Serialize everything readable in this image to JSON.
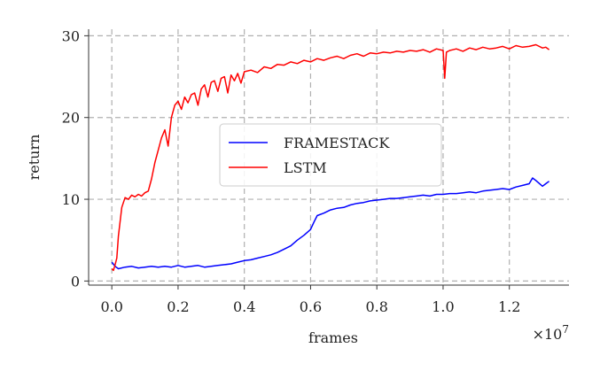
{
  "chart_data": {
    "type": "line",
    "title": "",
    "xlabel": "frames",
    "ylabel": "return",
    "x_offset_label": "×10",
    "x_offset_exponent": "7",
    "xlim": [
      -0.07,
      1.38
    ],
    "ylim": [
      -0.5,
      30.8
    ],
    "xticks": [
      0.0,
      0.2,
      0.4,
      0.6,
      0.8,
      1.0,
      1.2
    ],
    "xtick_labels": [
      "0.0",
      "0.2",
      "0.4",
      "0.6",
      "0.8",
      "1.0",
      "1.2"
    ],
    "yticks": [
      0,
      10,
      20,
      30
    ],
    "ytick_labels": [
      "0",
      "10",
      "20",
      "30"
    ],
    "grid": true,
    "legend_position": "center",
    "series": [
      {
        "name": "FRAMESTACK",
        "color": "#0000ff",
        "x": [
          0.0,
          0.01,
          0.02,
          0.04,
          0.06,
          0.08,
          0.1,
          0.12,
          0.14,
          0.16,
          0.18,
          0.2,
          0.22,
          0.24,
          0.26,
          0.28,
          0.3,
          0.32,
          0.34,
          0.36,
          0.38,
          0.4,
          0.42,
          0.44,
          0.46,
          0.48,
          0.5,
          0.52,
          0.54,
          0.56,
          0.58,
          0.6,
          0.61,
          0.62,
          0.64,
          0.66,
          0.68,
          0.7,
          0.72,
          0.74,
          0.76,
          0.78,
          0.8,
          0.82,
          0.84,
          0.86,
          0.88,
          0.9,
          0.92,
          0.94,
          0.96,
          0.98,
          1.0,
          1.02,
          1.04,
          1.06,
          1.08,
          1.1,
          1.12,
          1.14,
          1.16,
          1.18,
          1.2,
          1.22,
          1.24,
          1.26,
          1.27,
          1.28,
          1.3,
          1.31,
          1.32
        ],
        "y": [
          2.3,
          1.8,
          1.5,
          1.7,
          1.8,
          1.6,
          1.7,
          1.8,
          1.7,
          1.8,
          1.7,
          1.9,
          1.7,
          1.8,
          1.9,
          1.7,
          1.8,
          1.9,
          2.0,
          2.1,
          2.3,
          2.5,
          2.6,
          2.8,
          3.0,
          3.2,
          3.5,
          3.9,
          4.3,
          5.0,
          5.6,
          6.3,
          7.2,
          8.0,
          8.3,
          8.7,
          8.9,
          9.0,
          9.3,
          9.5,
          9.6,
          9.8,
          9.9,
          10.0,
          10.1,
          10.1,
          10.2,
          10.3,
          10.4,
          10.5,
          10.4,
          10.6,
          10.6,
          10.7,
          10.7,
          10.8,
          10.9,
          10.8,
          11.0,
          11.1,
          11.2,
          11.3,
          11.2,
          11.5,
          11.7,
          11.9,
          12.6,
          12.3,
          11.6,
          11.9,
          12.2
        ]
      },
      {
        "name": "LSTM",
        "color": "#ff0000",
        "x": [
          0.0,
          0.005,
          0.01,
          0.015,
          0.02,
          0.03,
          0.04,
          0.05,
          0.06,
          0.07,
          0.08,
          0.09,
          0.1,
          0.11,
          0.12,
          0.13,
          0.14,
          0.15,
          0.16,
          0.17,
          0.18,
          0.19,
          0.2,
          0.21,
          0.22,
          0.23,
          0.24,
          0.25,
          0.26,
          0.27,
          0.28,
          0.29,
          0.3,
          0.31,
          0.32,
          0.33,
          0.34,
          0.35,
          0.36,
          0.37,
          0.38,
          0.39,
          0.4,
          0.42,
          0.44,
          0.46,
          0.48,
          0.5,
          0.52,
          0.54,
          0.56,
          0.58,
          0.6,
          0.62,
          0.64,
          0.66,
          0.68,
          0.7,
          0.72,
          0.74,
          0.76,
          0.78,
          0.8,
          0.82,
          0.84,
          0.86,
          0.88,
          0.9,
          0.92,
          0.94,
          0.96,
          0.98,
          1.0,
          1.005,
          1.01,
          1.02,
          1.04,
          1.06,
          1.08,
          1.1,
          1.12,
          1.14,
          1.16,
          1.18,
          1.2,
          1.22,
          1.24,
          1.26,
          1.28,
          1.3,
          1.31,
          1.32
        ],
        "y": [
          1.5,
          1.3,
          2.0,
          2.8,
          5.5,
          9.0,
          10.2,
          10.0,
          10.5,
          10.3,
          10.6,
          10.4,
          10.8,
          11.0,
          12.5,
          14.5,
          16.0,
          17.5,
          18.5,
          16.5,
          20.0,
          21.5,
          22.0,
          21.0,
          22.5,
          21.8,
          22.8,
          23.0,
          21.5,
          23.5,
          24.0,
          22.5,
          24.3,
          24.5,
          23.2,
          24.8,
          25.0,
          23.0,
          25.2,
          24.5,
          25.4,
          24.2,
          25.6,
          25.8,
          25.5,
          26.2,
          26.0,
          26.5,
          26.4,
          26.8,
          26.6,
          27.0,
          26.8,
          27.2,
          27.0,
          27.3,
          27.5,
          27.2,
          27.6,
          27.8,
          27.5,
          27.9,
          27.8,
          28.0,
          27.9,
          28.1,
          28.0,
          28.2,
          28.1,
          28.3,
          28.0,
          28.4,
          28.2,
          24.8,
          28.0,
          28.2,
          28.4,
          28.1,
          28.5,
          28.3,
          28.6,
          28.4,
          28.5,
          28.7,
          28.4,
          28.8,
          28.6,
          28.7,
          28.9,
          28.5,
          28.6,
          28.3
        ]
      }
    ]
  }
}
